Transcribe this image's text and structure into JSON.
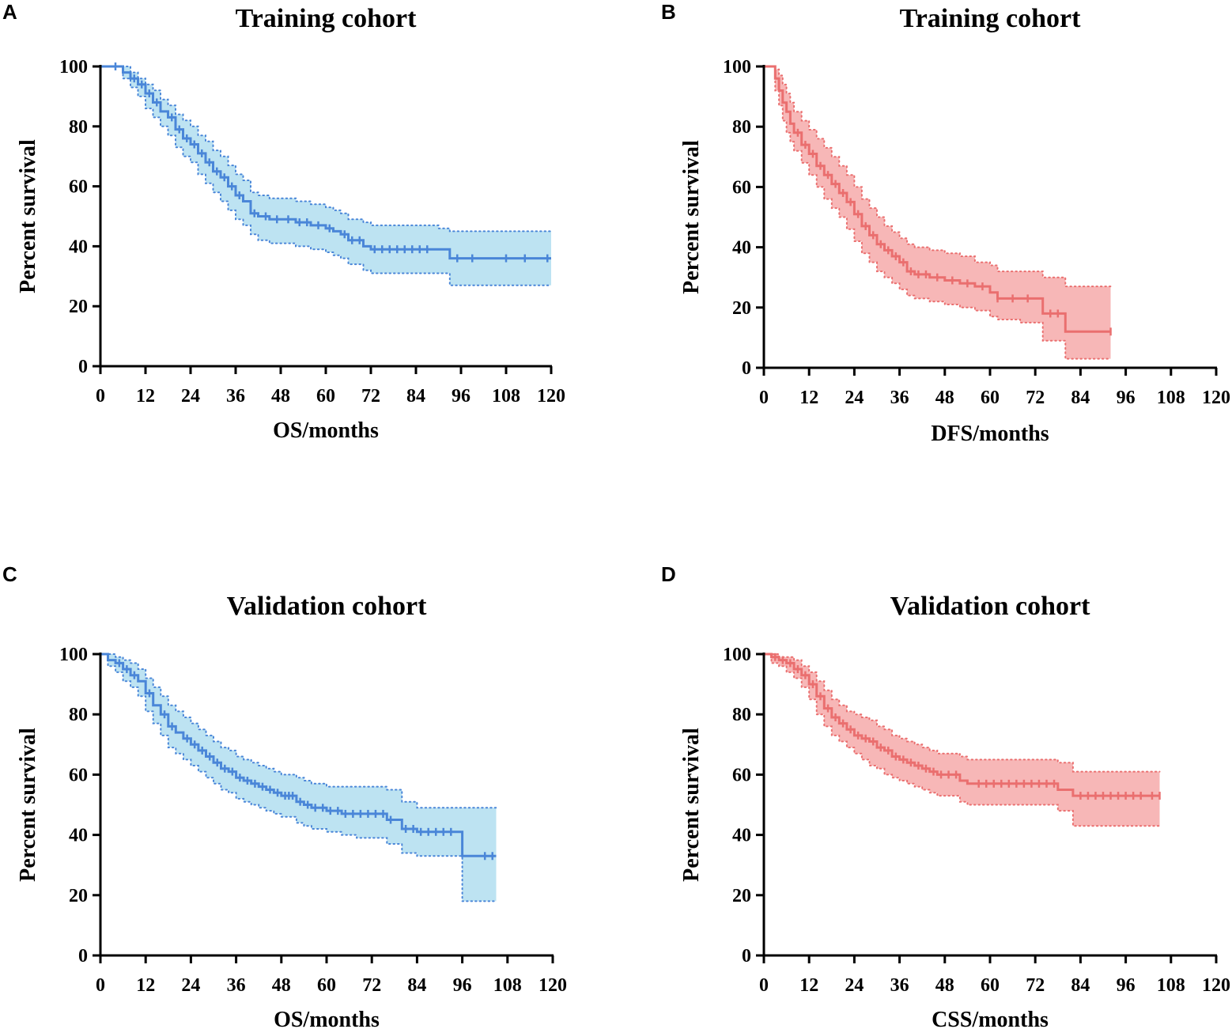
{
  "chart_data": [
    {
      "panel": "A",
      "type": "line",
      "title": "Training cohort",
      "xlabel": "OS/months",
      "ylabel": "Percent survival",
      "xlim": [
        0,
        120
      ],
      "ylim": [
        0,
        100
      ],
      "xticks": [
        "0",
        "12",
        "24",
        "36",
        "48",
        "60",
        "72",
        "84",
        "96",
        "108",
        "120"
      ],
      "yticks": [
        "0",
        "20",
        "40",
        "60",
        "80",
        "100"
      ],
      "color": "#4a86d8",
      "band_fill": "#bde3f2",
      "series": [
        {
          "name": "Survival",
          "x": [
            0,
            3,
            6,
            8,
            10,
            12,
            14,
            16,
            18,
            20,
            22,
            24,
            26,
            28,
            30,
            32,
            34,
            36,
            38,
            40,
            42,
            45,
            48,
            52,
            56,
            60,
            62,
            64,
            66,
            70,
            72,
            84,
            90,
            93,
            120
          ],
          "y": [
            100,
            100,
            98,
            96,
            94,
            91,
            88,
            85,
            83,
            79,
            76,
            74,
            71,
            68,
            65,
            63,
            60,
            57,
            55,
            51,
            50,
            49,
            49,
            48,
            47,
            46,
            45,
            44,
            42,
            40,
            39,
            39,
            39,
            36,
            36
          ]
        },
        {
          "name": "Upper 95% CI",
          "x": [
            0,
            3,
            6,
            8,
            10,
            12,
            14,
            16,
            18,
            20,
            22,
            24,
            26,
            28,
            30,
            32,
            34,
            36,
            38,
            40,
            42,
            45,
            48,
            52,
            56,
            60,
            62,
            64,
            66,
            70,
            72,
            84,
            90,
            93,
            120
          ],
          "y": [
            100,
            100,
            100,
            98,
            96,
            94,
            92,
            89,
            87,
            84,
            82,
            80,
            77,
            75,
            72,
            70,
            67,
            64,
            62,
            58,
            57,
            56,
            56,
            55,
            54,
            53,
            52,
            51,
            49,
            48,
            47,
            47,
            46,
            45,
            45
          ]
        },
        {
          "name": "Lower 95% CI",
          "x": [
            0,
            3,
            6,
            8,
            10,
            12,
            14,
            16,
            18,
            20,
            22,
            24,
            26,
            28,
            30,
            32,
            34,
            36,
            38,
            40,
            42,
            45,
            48,
            52,
            56,
            60,
            62,
            64,
            66,
            70,
            72,
            84,
            90,
            93,
            120
          ],
          "y": [
            100,
            100,
            96,
            93,
            90,
            86,
            83,
            80,
            77,
            73,
            70,
            68,
            64,
            61,
            58,
            55,
            52,
            49,
            47,
            44,
            42,
            41,
            41,
            40,
            39,
            38,
            37,
            36,
            34,
            32,
            31,
            31,
            31,
            27,
            27
          ]
        }
      ],
      "censor_x": [
        4,
        9,
        11,
        13,
        15,
        19,
        21,
        23,
        25,
        27,
        29,
        31,
        33,
        35,
        37,
        41,
        44,
        47,
        50,
        53,
        55,
        58,
        61,
        65,
        67,
        69,
        73,
        75,
        77,
        79,
        81,
        83,
        85,
        87,
        95,
        99,
        108,
        113,
        119
      ]
    },
    {
      "panel": "B",
      "type": "line",
      "title": "Training cohort",
      "xlabel": "DFS/months",
      "ylabel": "Percent survival",
      "xlim": [
        0,
        120
      ],
      "ylim": [
        0,
        100
      ],
      "xticks": [
        "0",
        "12",
        "24",
        "36",
        "48",
        "60",
        "72",
        "84",
        "96",
        "108",
        "120"
      ],
      "yticks": [
        "0",
        "20",
        "40",
        "60",
        "80",
        "100"
      ],
      "color": "#ea6f6f",
      "band_fill": "#f7b7b7",
      "series": [
        {
          "name": "Survival",
          "x": [
            0,
            2,
            3,
            4,
            5,
            6,
            7,
            8,
            10,
            12,
            14,
            16,
            18,
            20,
            22,
            24,
            26,
            28,
            30,
            32,
            34,
            36,
            38,
            40,
            44,
            48,
            52,
            56,
            60,
            62,
            68,
            74,
            80,
            92
          ],
          "y": [
            100,
            100,
            96,
            92,
            88,
            85,
            81,
            78,
            74,
            71,
            67,
            64,
            61,
            58,
            55,
            51,
            47,
            44,
            41,
            39,
            37,
            35,
            32,
            31,
            30,
            29,
            28,
            27,
            25,
            23,
            23,
            18,
            12,
            12
          ]
        },
        {
          "name": "Upper 95% CI",
          "x": [
            0,
            2,
            3,
            4,
            5,
            6,
            7,
            8,
            10,
            12,
            14,
            16,
            18,
            20,
            22,
            24,
            26,
            28,
            30,
            32,
            34,
            36,
            38,
            40,
            44,
            48,
            52,
            56,
            60,
            62,
            68,
            74,
            80,
            92
          ],
          "y": [
            100,
            100,
            99,
            97,
            94,
            91,
            88,
            85,
            82,
            79,
            76,
            73,
            70,
            67,
            64,
            60,
            56,
            53,
            50,
            47,
            45,
            43,
            41,
            40,
            39,
            38,
            37,
            35,
            34,
            32,
            32,
            30,
            27,
            27
          ]
        },
        {
          "name": "Lower 95% CI",
          "x": [
            0,
            2,
            3,
            4,
            5,
            6,
            7,
            8,
            10,
            12,
            14,
            16,
            18,
            20,
            22,
            24,
            26,
            28,
            30,
            32,
            34,
            36,
            38,
            40,
            44,
            48,
            52,
            56,
            60,
            62,
            68,
            74,
            80,
            92
          ],
          "y": [
            100,
            100,
            92,
            87,
            82,
            78,
            75,
            72,
            68,
            64,
            60,
            56,
            53,
            50,
            46,
            42,
            38,
            35,
            32,
            30,
            28,
            26,
            24,
            23,
            22,
            21,
            20,
            19,
            17,
            16,
            15,
            9,
            3,
            3
          ]
        }
      ],
      "censor_x": [
        9,
        11,
        13,
        15,
        17,
        19,
        21,
        23,
        25,
        27,
        29,
        31,
        33,
        35,
        37,
        39,
        41,
        43,
        46,
        50,
        54,
        58,
        62,
        66,
        70,
        76,
        78,
        92
      ]
    },
    {
      "panel": "C",
      "type": "line",
      "title": "Validation cohort",
      "xlabel": "OS/months",
      "ylabel": "Percent survival",
      "xlim": [
        0,
        120
      ],
      "ylim": [
        0,
        100
      ],
      "xticks": [
        "0",
        "12",
        "24",
        "36",
        "48",
        "60",
        "72",
        "84",
        "96",
        "108",
        "120"
      ],
      "yticks": [
        "0",
        "20",
        "40",
        "60",
        "80",
        "100"
      ],
      "color": "#4a86d8",
      "band_fill": "#bde3f2",
      "series": [
        {
          "name": "Survival",
          "x": [
            0,
            2,
            4,
            6,
            8,
            10,
            12,
            14,
            16,
            18,
            20,
            22,
            24,
            26,
            28,
            30,
            32,
            34,
            36,
            38,
            40,
            42,
            44,
            46,
            48,
            52,
            54,
            56,
            60,
            64,
            68,
            72,
            76,
            78,
            80,
            84,
            96,
            105
          ],
          "y": [
            100,
            98,
            97,
            95,
            93,
            91,
            87,
            83,
            80,
            76,
            74,
            72,
            70,
            68,
            66,
            64,
            62,
            61,
            59,
            58,
            57,
            56,
            55,
            54,
            53,
            51,
            50,
            49,
            48,
            47,
            47,
            47,
            45,
            45,
            42,
            41,
            33,
            33
          ]
        },
        {
          "name": "Upper 95% CI",
          "x": [
            0,
            2,
            4,
            6,
            8,
            10,
            12,
            14,
            16,
            18,
            20,
            22,
            24,
            26,
            28,
            30,
            32,
            34,
            36,
            38,
            40,
            42,
            44,
            46,
            48,
            52,
            54,
            56,
            60,
            64,
            68,
            72,
            76,
            78,
            80,
            84,
            96,
            105
          ],
          "y": [
            100,
            100,
            99,
            98,
            97,
            95,
            92,
            89,
            86,
            83,
            81,
            79,
            77,
            75,
            73,
            71,
            69,
            68,
            66,
            65,
            64,
            63,
            62,
            61,
            60,
            59,
            58,
            57,
            56,
            56,
            56,
            56,
            55,
            55,
            51,
            49,
            49,
            49
          ]
        },
        {
          "name": "Lower 95% CI",
          "x": [
            0,
            2,
            4,
            6,
            8,
            10,
            12,
            14,
            16,
            18,
            20,
            22,
            24,
            26,
            28,
            30,
            32,
            34,
            36,
            38,
            40,
            42,
            44,
            46,
            48,
            52,
            54,
            56,
            60,
            64,
            68,
            72,
            76,
            78,
            80,
            84,
            96,
            105
          ],
          "y": [
            100,
            96,
            94,
            91,
            89,
            86,
            81,
            77,
            73,
            69,
            67,
            65,
            63,
            61,
            59,
            57,
            55,
            54,
            52,
            51,
            50,
            49,
            48,
            47,
            46,
            44,
            43,
            42,
            41,
            40,
            39,
            39,
            37,
            37,
            34,
            33,
            18,
            18
          ]
        }
      ],
      "censor_x": [
        5,
        7,
        9,
        13,
        17,
        19,
        23,
        25,
        27,
        29,
        31,
        33,
        35,
        37,
        39,
        41,
        43,
        45,
        47,
        49,
        50,
        51,
        53,
        55,
        57,
        59,
        61,
        63,
        65,
        67,
        69,
        71,
        73,
        75,
        77,
        81,
        83,
        85,
        87,
        89,
        91,
        93,
        102,
        104
      ]
    },
    {
      "panel": "D",
      "type": "line",
      "title": "Validation cohort",
      "xlabel": "CSS/months",
      "ylabel": "Percent survival",
      "xlim": [
        0,
        120
      ],
      "ylim": [
        0,
        100
      ],
      "xticks": [
        "0",
        "12",
        "24",
        "36",
        "48",
        "60",
        "72",
        "84",
        "96",
        "108",
        "120"
      ],
      "yticks": [
        "0",
        "20",
        "40",
        "60",
        "80",
        "100"
      ],
      "color": "#ea6f6f",
      "band_fill": "#f7b7b7",
      "series": [
        {
          "name": "Survival",
          "x": [
            0,
            2,
            4,
            6,
            8,
            10,
            12,
            14,
            16,
            18,
            20,
            22,
            24,
            26,
            28,
            30,
            32,
            34,
            36,
            38,
            40,
            42,
            44,
            46,
            48,
            52,
            54,
            60,
            72,
            78,
            82,
            105
          ],
          "y": [
            100,
            99,
            98,
            97,
            95,
            93,
            90,
            86,
            82,
            79,
            77,
            75,
            73,
            72,
            71,
            69,
            68,
            66,
            65,
            64,
            63,
            62,
            61,
            60,
            60,
            58,
            57,
            57,
            57,
            55,
            53,
            53
          ]
        },
        {
          "name": "Upper 95% CI",
          "x": [
            0,
            2,
            4,
            6,
            8,
            10,
            12,
            14,
            16,
            18,
            20,
            22,
            24,
            26,
            28,
            30,
            32,
            34,
            36,
            38,
            40,
            42,
            44,
            46,
            48,
            52,
            54,
            60,
            72,
            78,
            82,
            105
          ],
          "y": [
            100,
            100,
            99,
            99,
            98,
            96,
            94,
            91,
            88,
            85,
            83,
            81,
            80,
            79,
            78,
            76,
            75,
            73,
            72,
            71,
            70,
            69,
            68,
            67,
            67,
            66,
            65,
            65,
            65,
            64,
            61,
            61
          ]
        },
        {
          "name": "Lower 95% CI",
          "x": [
            0,
            2,
            4,
            6,
            8,
            10,
            12,
            14,
            16,
            18,
            20,
            22,
            24,
            26,
            28,
            30,
            32,
            34,
            36,
            38,
            40,
            42,
            44,
            46,
            48,
            52,
            54,
            60,
            72,
            78,
            82,
            105
          ],
          "y": [
            100,
            97,
            96,
            94,
            92,
            89,
            85,
            80,
            76,
            73,
            71,
            69,
            67,
            65,
            63,
            62,
            60,
            59,
            58,
            57,
            56,
            55,
            54,
            53,
            53,
            51,
            50,
            50,
            50,
            48,
            43,
            43
          ]
        }
      ],
      "censor_x": [
        3,
        5,
        7,
        9,
        11,
        13,
        15,
        17,
        19,
        21,
        23,
        25,
        27,
        29,
        31,
        33,
        35,
        37,
        39,
        41,
        43,
        45,
        47,
        49,
        51,
        57,
        59,
        61,
        63,
        65,
        67,
        69,
        71,
        73,
        75,
        77,
        84,
        86,
        88,
        90,
        92,
        94,
        96,
        98,
        100,
        103,
        105
      ]
    }
  ]
}
